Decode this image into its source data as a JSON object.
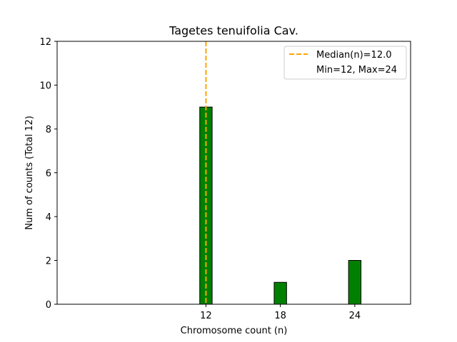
{
  "chart_data": {
    "type": "bar",
    "title": "Tagetes tenuifolia Cav.",
    "xlabel": "Chromosome count (n)",
    "ylabel": "Num of counts     (Total 12)",
    "x": [
      12,
      18,
      24
    ],
    "values": [
      9,
      1,
      2
    ],
    "xticks": [
      12,
      18,
      24
    ],
    "yticks": [
      0,
      2,
      4,
      6,
      8,
      10,
      12
    ],
    "xlim": [
      0,
      28.5
    ],
    "ylim": [
      0,
      12
    ],
    "bar_width": 1,
    "bar_color": "#008000",
    "bar_edge_color": "#000000",
    "median": 12.0,
    "median_color": "#FFA500",
    "legend": {
      "position": "top-right",
      "entries": [
        "Median(n)=12.0",
        "Min=12, Max=24"
      ]
    },
    "grid": false
  }
}
